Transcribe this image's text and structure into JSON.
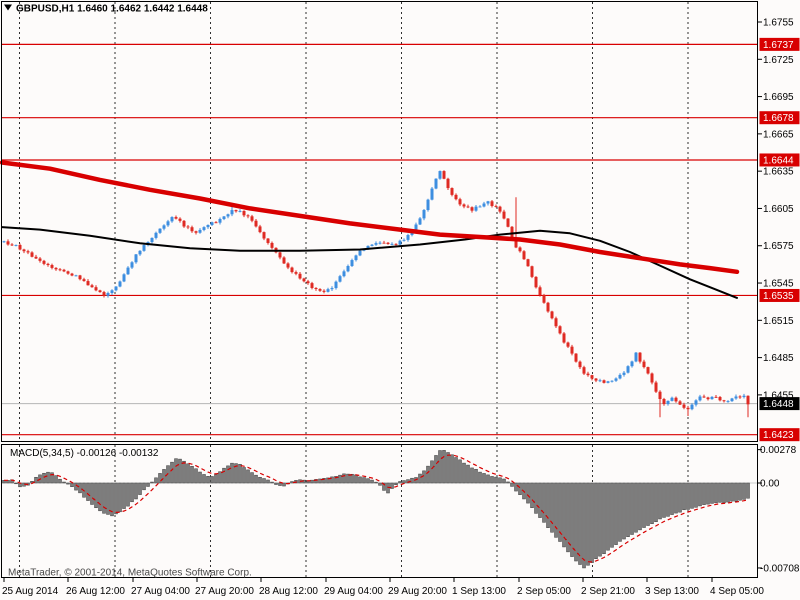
{
  "header": {
    "symbol_period": "GBPUSD,H1",
    "open": "1.6460",
    "high": "1.6462",
    "low": "1.6442",
    "close": "1.6448",
    "quote_text": "GBPUSD,H1  1.6460 1.6462 1.6442 1.6448"
  },
  "price_axis": {
    "ticks": [
      "1.6755",
      "1.6725",
      "1.6695",
      "1.6665",
      "1.6635",
      "1.6605",
      "1.6575",
      "1.6545",
      "1.6515",
      "1.6485",
      "1.6455"
    ],
    "badges": [
      {
        "label": "1.6737",
        "price": 1.6737,
        "style": "red"
      },
      {
        "label": "1.6678",
        "price": 1.6678,
        "style": "red"
      },
      {
        "label": "1.6644",
        "price": 1.6644,
        "style": "red"
      },
      {
        "label": "1.6535",
        "price": 1.6535,
        "style": "red"
      },
      {
        "label": "1.6423",
        "price": 1.6423,
        "style": "red"
      },
      {
        "label": "1.6448",
        "price": 1.6448,
        "style": "black"
      }
    ]
  },
  "time_axis": {
    "labels": [
      "25 Aug 2014",
      "26 Aug 12:00",
      "27 Aug 04:00",
      "27 Aug 20:00",
      "28 Aug 12:00",
      "29 Aug 04:00",
      "29 Aug 20:00",
      "1 Sep 13:00",
      "2 Sep 05:00",
      "2 Sep 21:00",
      "3 Sep 13:00",
      "4 Sep 05:00"
    ]
  },
  "indicator": {
    "name": "MACD",
    "params": "5,34,5",
    "value": "-0.00126",
    "signal_value": "-0.00132",
    "label_text": "MACD(5,34,5) -0.00126 -0.00132",
    "ticks": [
      {
        "label": "0.00278",
        "value": 0.00278
      },
      {
        "label": "0.00",
        "value": 0
      },
      {
        "label": "-0.00708",
        "value": -0.00708
      }
    ]
  },
  "footer": {
    "copyright": "MetaTrader, © 2001-2014, MetaQuotes Software Corp."
  },
  "colors": {
    "background": "#fdfbfa",
    "frame": "#000000",
    "grid": "#2f2f2f",
    "bull": "#3d8ee0",
    "bear": "#df2a23",
    "level_red": "#d80000",
    "badge_red_bg": "#d80000",
    "badge_black_bg": "#000000",
    "badge_text": "#ffffff",
    "ma_black": "#000000",
    "ma_red": "#d80000",
    "macd_hist_fill": "#7d7d7d",
    "macd_hist_stroke": "#3e3e3e",
    "macd_signal": "#d80000",
    "macd_zero_line": "#cccccc",
    "current_price_line": "#b5b5b5"
  },
  "chart_data": {
    "type": "candlestick+macd",
    "symbol": "GBPUSD",
    "timeframe": "H1",
    "ohlc_quote": {
      "open": 1.646,
      "high": 1.6462,
      "low": 1.6442,
      "close": 1.6448
    },
    "visible_price_range": [
      1.6415,
      1.676
    ],
    "levels": {
      "resistance": [
        1.6737,
        1.6678,
        1.6644
      ],
      "support": [
        1.6535,
        1.6423
      ],
      "current_price": 1.6448
    },
    "x_labels": [
      "25 Aug 2014",
      "26 Aug 12:00",
      "27 Aug 04:00",
      "27 Aug 20:00",
      "28 Aug 12:00",
      "29 Aug 04:00",
      "29 Aug 20:00",
      "1 Sep 13:00",
      "2 Sep 05:00",
      "2 Sep 21:00",
      "3 Sep 13:00",
      "4 Sep 05:00"
    ],
    "close_path_anchors": [
      [
        4,
        1.6578
      ],
      [
        15,
        1.6575
      ],
      [
        30,
        1.6568
      ],
      [
        45,
        1.656
      ],
      [
        60,
        1.6556
      ],
      [
        75,
        1.6551
      ],
      [
        88,
        1.6544
      ],
      [
        98,
        1.6538
      ],
      [
        106,
        1.6535
      ],
      [
        114,
        1.6541
      ],
      [
        122,
        1.6549
      ],
      [
        130,
        1.656
      ],
      [
        140,
        1.6572
      ],
      [
        152,
        1.6582
      ],
      [
        162,
        1.6591
      ],
      [
        172,
        1.6598
      ],
      [
        180,
        1.6594
      ],
      [
        188,
        1.6589
      ],
      [
        196,
        1.6586
      ],
      [
        205,
        1.659
      ],
      [
        215,
        1.6594
      ],
      [
        225,
        1.66
      ],
      [
        235,
        1.6604
      ],
      [
        245,
        1.66
      ],
      [
        255,
        1.6592
      ],
      [
        265,
        1.658
      ],
      [
        275,
        1.657
      ],
      [
        285,
        1.656
      ],
      [
        295,
        1.6552
      ],
      [
        305,
        1.6546
      ],
      [
        315,
        1.654
      ],
      [
        325,
        1.6537
      ],
      [
        332,
        1.6542
      ],
      [
        340,
        1.655
      ],
      [
        350,
        1.6562
      ],
      [
        360,
        1.657
      ],
      [
        370,
        1.6575
      ],
      [
        380,
        1.6578
      ],
      [
        390,
        1.6575
      ],
      [
        398,
        1.6577
      ],
      [
        406,
        1.6581
      ],
      [
        414,
        1.6588
      ],
      [
        422,
        1.66
      ],
      [
        429,
        1.6614
      ],
      [
        435,
        1.6627
      ],
      [
        440,
        1.6634
      ],
      [
        446,
        1.6625
      ],
      [
        452,
        1.6616
      ],
      [
        458,
        1.661
      ],
      [
        465,
        1.6606
      ],
      [
        472,
        1.6604
      ],
      [
        480,
        1.6607
      ],
      [
        488,
        1.661
      ],
      [
        496,
        1.6606
      ],
      [
        503,
        1.6599
      ],
      [
        509,
        1.6588
      ],
      [
        514,
        1.6576
      ],
      [
        520,
        1.6571
      ],
      [
        526,
        1.6562
      ],
      [
        532,
        1.6551
      ],
      [
        537,
        1.6539
      ],
      [
        543,
        1.653
      ],
      [
        549,
        1.6521
      ],
      [
        555,
        1.6512
      ],
      [
        561,
        1.6502
      ],
      [
        567,
        1.6494
      ],
      [
        573,
        1.6487
      ],
      [
        579,
        1.6478
      ],
      [
        586,
        1.6471
      ],
      [
        593,
        1.6468
      ],
      [
        600,
        1.6466
      ],
      [
        608,
        1.6465
      ],
      [
        616,
        1.6468
      ],
      [
        624,
        1.6473
      ],
      [
        630,
        1.648
      ],
      [
        636,
        1.6488
      ],
      [
        641,
        1.6481
      ],
      [
        647,
        1.6473
      ],
      [
        653,
        1.6463
      ],
      [
        659,
        1.6452
      ],
      [
        665,
        1.6448
      ],
      [
        671,
        1.6452
      ],
      [
        677,
        1.645
      ],
      [
        683,
        1.6446
      ],
      [
        689,
        1.6443
      ],
      [
        695,
        1.6451
      ],
      [
        701,
        1.6454
      ],
      [
        707,
        1.6452
      ],
      [
        713,
        1.6454
      ],
      [
        719,
        1.6452
      ],
      [
        725,
        1.645
      ],
      [
        731,
        1.6452
      ],
      [
        737,
        1.6453
      ],
      [
        743,
        1.6455
      ],
      [
        748,
        1.6448
      ]
    ],
    "wick_overrides": [
      [
        106,
        "low",
        1.6533
      ],
      [
        170,
        "high",
        1.6606
      ],
      [
        233,
        "high",
        1.6608
      ],
      [
        438,
        "high",
        1.6645
      ],
      [
        517,
        "high",
        1.6614
      ],
      [
        661,
        "low",
        1.6437
      ],
      [
        688,
        "low",
        1.6438
      ],
      [
        748,
        "low",
        1.6437
      ]
    ],
    "ma_black_anchors": [
      [
        2,
        1.659
      ],
      [
        40,
        1.6588
      ],
      [
        90,
        1.6583
      ],
      [
        140,
        1.6577
      ],
      [
        190,
        1.6573
      ],
      [
        240,
        1.6571
      ],
      [
        300,
        1.6571
      ],
      [
        360,
        1.6572
      ],
      [
        420,
        1.6576
      ],
      [
        465,
        1.658
      ],
      [
        500,
        1.6584
      ],
      [
        540,
        1.6587
      ],
      [
        570,
        1.6585
      ],
      [
        600,
        1.6579
      ],
      [
        630,
        1.657
      ],
      [
        660,
        1.6559
      ],
      [
        690,
        1.6548
      ],
      [
        715,
        1.654
      ],
      [
        737,
        1.6533
      ]
    ],
    "ma_red_anchors": [
      [
        2,
        1.6642
      ],
      [
        50,
        1.6637
      ],
      [
        100,
        1.6628
      ],
      [
        150,
        1.662
      ],
      [
        200,
        1.6613
      ],
      [
        250,
        1.6605
      ],
      [
        300,
        1.6599
      ],
      [
        350,
        1.6593
      ],
      [
        400,
        1.6588
      ],
      [
        440,
        1.6584
      ],
      [
        480,
        1.6582
      ],
      [
        520,
        1.658
      ],
      [
        560,
        1.6576
      ],
      [
        600,
        1.657
      ],
      [
        640,
        1.6565
      ],
      [
        680,
        1.656
      ],
      [
        710,
        1.6557
      ],
      [
        737,
        1.6554
      ]
    ],
    "macd": {
      "params": "5,34,5",
      "last_value": -0.00126,
      "last_signal": -0.00132,
      "axis_max": 0.00278,
      "axis_min": -0.00708,
      "anchors": [
        [
          4,
          0.0002
        ],
        [
          12,
          0.0003
        ],
        [
          20,
          -0.0003
        ],
        [
          28,
          -0.0002
        ],
        [
          36,
          0.0005
        ],
        [
          46,
          0.0009
        ],
        [
          54,
          0.0008
        ],
        [
          62,
          0.0002
        ],
        [
          70,
          -0.0002
        ],
        [
          78,
          -0.0007
        ],
        [
          86,
          -0.0013
        ],
        [
          95,
          -0.002
        ],
        [
          104,
          -0.0025
        ],
        [
          112,
          -0.0027
        ],
        [
          120,
          -0.0024
        ],
        [
          128,
          -0.0019
        ],
        [
          136,
          -0.0013
        ],
        [
          144,
          -0.0006
        ],
        [
          151,
          0.0
        ],
        [
          158,
          0.0006
        ],
        [
          165,
          0.0012
        ],
        [
          171,
          0.0017
        ],
        [
          177,
          0.0021
        ],
        [
          183,
          0.0019
        ],
        [
          190,
          0.0015
        ],
        [
          197,
          0.0011
        ],
        [
          204,
          0.0007
        ],
        [
          211,
          0.0005
        ],
        [
          219,
          0.0009
        ],
        [
          227,
          0.0014
        ],
        [
          234,
          0.0017
        ],
        [
          241,
          0.0015
        ],
        [
          248,
          0.0011
        ],
        [
          255,
          0.0007
        ],
        [
          262,
          0.0004
        ],
        [
          269,
          0.0002
        ],
        [
          276,
          -0.0001
        ],
        [
          283,
          -0.0003
        ],
        [
          291,
          0.0001
        ],
        [
          299,
          0.0003
        ],
        [
          307,
          0.0002
        ],
        [
          316,
          0.0003
        ],
        [
          324,
          0.0004
        ],
        [
          332,
          0.0005
        ],
        [
          341,
          0.0007
        ],
        [
          350,
          0.0008
        ],
        [
          358,
          0.0006
        ],
        [
          366,
          0.0004
        ],
        [
          374,
          0.0002
        ],
        [
          381,
          -0.0003
        ],
        [
          387,
          -0.0009
        ],
        [
          393,
          -0.0004
        ],
        [
          400,
          0.0001
        ],
        [
          408,
          0.0003
        ],
        [
          416,
          0.0005
        ],
        [
          423,
          0.0009
        ],
        [
          429,
          0.0015
        ],
        [
          435,
          0.0022
        ],
        [
          441,
          0.00278
        ],
        [
          447,
          0.0026
        ],
        [
          453,
          0.0023
        ],
        [
          460,
          0.0019
        ],
        [
          467,
          0.0015
        ],
        [
          474,
          0.0012
        ],
        [
          481,
          0.0009
        ],
        [
          488,
          0.0007
        ],
        [
          495,
          0.0005
        ],
        [
          502,
          0.0004
        ],
        [
          508,
          0.0001
        ],
        [
          513,
          -0.0004
        ],
        [
          519,
          -0.0009
        ],
        [
          525,
          -0.0014
        ],
        [
          531,
          -0.002
        ],
        [
          537,
          -0.0026
        ],
        [
          543,
          -0.0032
        ],
        [
          549,
          -0.0038
        ],
        [
          555,
          -0.0044
        ],
        [
          561,
          -0.005
        ],
        [
          567,
          -0.0056
        ],
        [
          573,
          -0.0062
        ],
        [
          578,
          -0.0067
        ],
        [
          584,
          -0.00708
        ],
        [
          592,
          -0.0066
        ],
        [
          600,
          -0.0061
        ],
        [
          610,
          -0.0055
        ],
        [
          620,
          -0.0049
        ],
        [
          630,
          -0.0044
        ],
        [
          640,
          -0.0039
        ],
        [
          650,
          -0.0035
        ],
        [
          658,
          -0.0031
        ],
        [
          666,
          -0.0028
        ],
        [
          674,
          -0.0026
        ],
        [
          680,
          -0.0024
        ],
        [
          686,
          -0.0022
        ],
        [
          692,
          -0.0021
        ],
        [
          700,
          -0.0019
        ],
        [
          710,
          -0.00175
        ],
        [
          720,
          -0.00165
        ],
        [
          730,
          -0.00155
        ],
        [
          740,
          -0.00145
        ],
        [
          748,
          -0.00126
        ]
      ]
    }
  }
}
